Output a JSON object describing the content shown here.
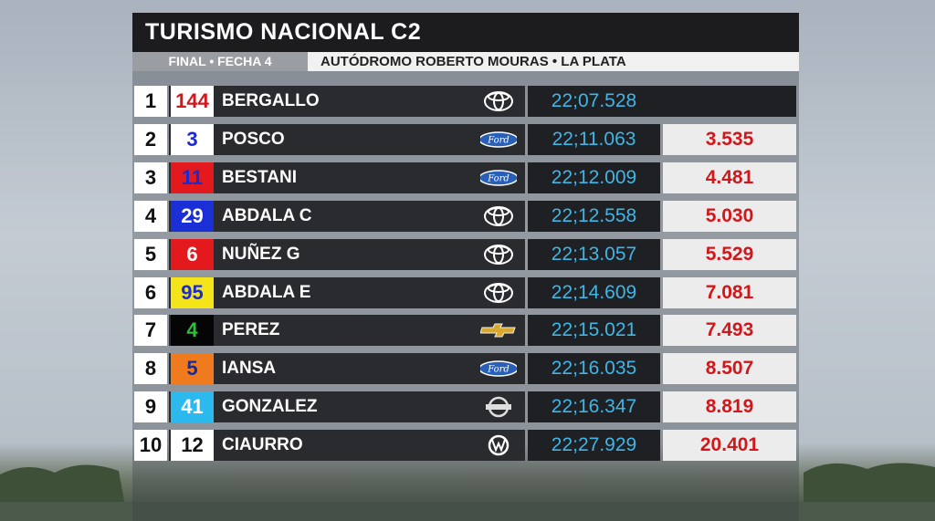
{
  "header": {
    "title": "TURISMO NACIONAL C2",
    "round": "FINAL • FECHA 4",
    "venue": "AUTÓDROMO ROBERTO MOURAS • LA PLATA"
  },
  "table": {
    "rows": [
      [
        "1",
        "144",
        "BERGALLO",
        "22;07.528"
      ],
      [
        "2",
        "3",
        "POSCO",
        "22;11.063",
        "3.535"
      ],
      [
        "3",
        "11",
        "BESTANI",
        "22;12.009",
        "4.481"
      ],
      [
        "4",
        "29",
        "ABDALA C",
        "22;12.558",
        "5.030"
      ],
      [
        "5",
        "6",
        "NUÑEZ G",
        "22;13.057",
        "5.529"
      ],
      [
        "6",
        "95",
        "ABDALA E",
        "22;14.609",
        "7.081"
      ],
      [
        "7",
        "4",
        "PEREZ",
        "22;15.021",
        "7.493"
      ],
      [
        "8",
        "5",
        "IANSA",
        "22;16.035",
        "8.507"
      ],
      [
        "9",
        "41",
        "GONZALEZ",
        "22;16.347",
        "8.819"
      ],
      [
        "10",
        "12",
        "CIAURRO",
        "22;27.929",
        "20.401"
      ]
    ]
  }
}
